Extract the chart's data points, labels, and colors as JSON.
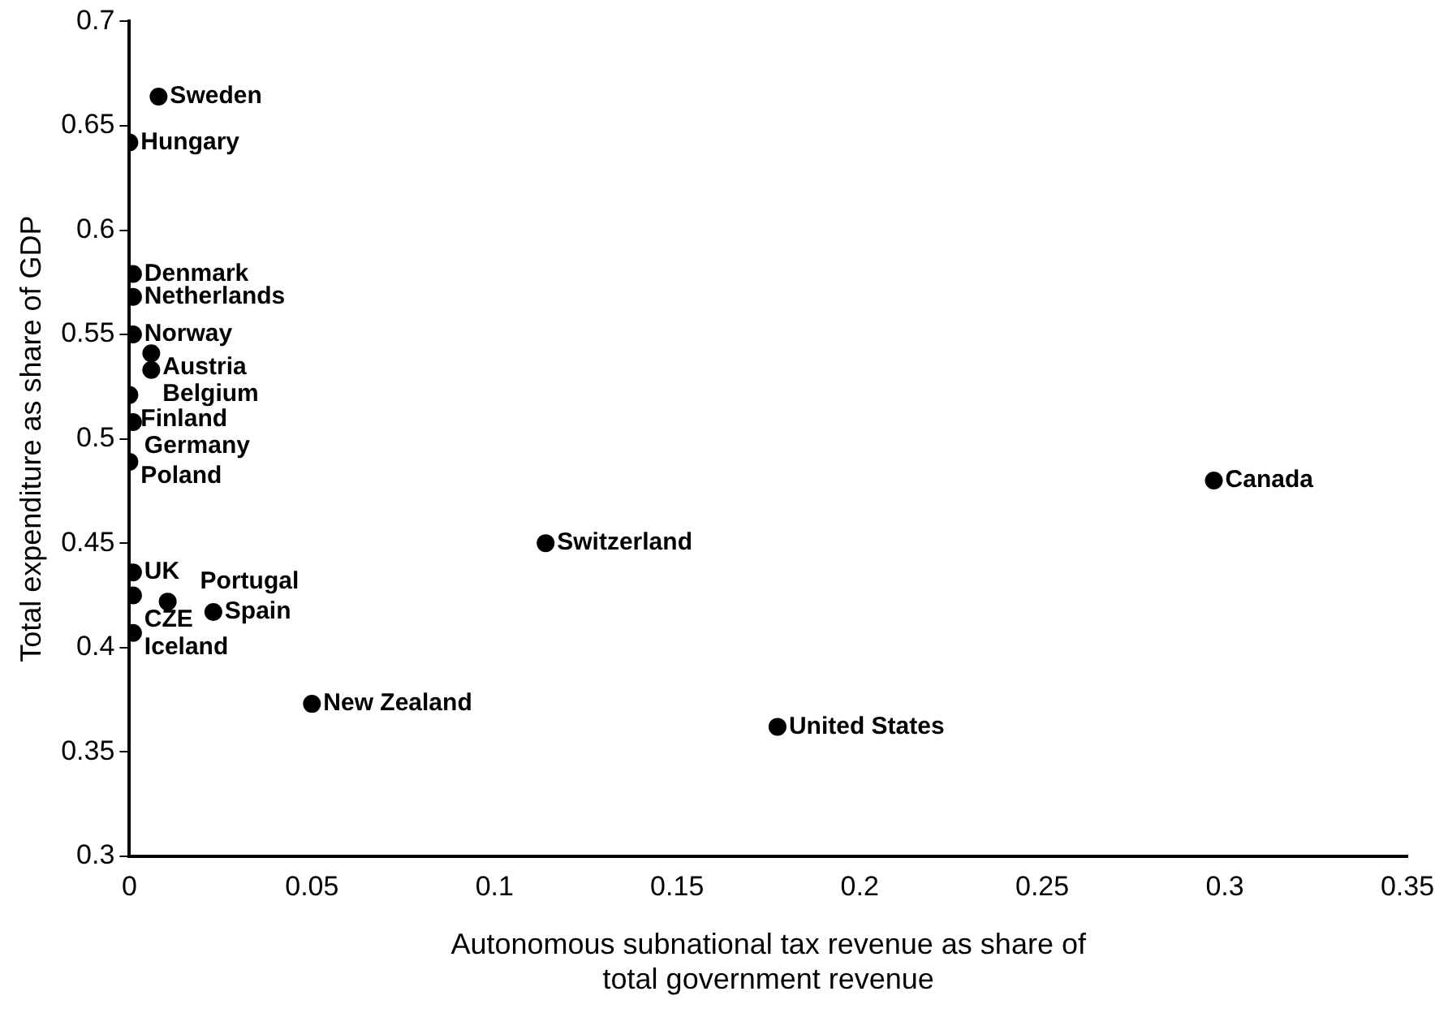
{
  "chart_data": {
    "type": "scatter",
    "xlabel": "Autonomous subnational tax revenue as share of\ntotal government revenue",
    "ylabel": "Total expenditure as share of GDP",
    "series": [
      {
        "color": "#000000",
        "x": [
          0.008,
          0,
          0.001,
          0.001,
          0.001,
          0.006,
          0.006,
          0,
          0.001,
          0,
          0.001,
          0.001,
          0.0105,
          0.023,
          0.001,
          0.05,
          0.114,
          0.1775,
          0.297
        ],
        "values": [
          0.664,
          0.642,
          0.579,
          0.568,
          0.55,
          0.541,
          0.533,
          0.521,
          0.508,
          0.489,
          0.436,
          0.425,
          0.422,
          0.417,
          0.407,
          0.373,
          0.45,
          0.362,
          0.48
        ]
      }
    ],
    "annotations": [
      {
        "text": "Sweden",
        "x": 0.008,
        "y": 0.664
      },
      {
        "text": "Hungary",
        "x": 0,
        "y": 0.642
      },
      {
        "text": "Denmark",
        "x": 0.001,
        "y": 0.579
      },
      {
        "text": "Netherlands",
        "x": 0.001,
        "y": 0.568
      },
      {
        "text": "Norway",
        "x": 0.001,
        "y": 0.55
      },
      {
        "text": "Austria",
        "x": 0.006,
        "y": 0.541
      },
      {
        "text": "Belgium",
        "x": 0.006,
        "y": 0.533
      },
      {
        "text": "Finland",
        "x": 0,
        "y": 0.521
      },
      {
        "text": "Germany",
        "x": 0.001,
        "y": 0.508
      },
      {
        "text": "Poland",
        "x": 0,
        "y": 0.489
      },
      {
        "text": "UK",
        "x": 0.001,
        "y": 0.436
      },
      {
        "text": "CZE",
        "x": 0.001,
        "y": 0.425
      },
      {
        "text": "Portugal",
        "x": 0.0105,
        "y": 0.422
      },
      {
        "text": "Spain",
        "x": 0.023,
        "y": 0.417
      },
      {
        "text": "Iceland",
        "x": 0.001,
        "y": 0.407
      },
      {
        "text": "New Zealand",
        "x": 0.05,
        "y": 0.373
      },
      {
        "text": "Switzerland",
        "x": 0.114,
        "y": 0.45
      },
      {
        "text": "United States",
        "x": 0.1775,
        "y": 0.362
      },
      {
        "text": "Canada",
        "x": 0.297,
        "y": 0.48
      }
    ],
    "xlim": [
      0,
      0.35
    ],
    "xticks": [
      0,
      0.05,
      0.1,
      0.15,
      0.2,
      0.25,
      0.3,
      0.35
    ],
    "ylim": [
      0.3,
      0.7
    ],
    "yticks": [
      0.3,
      0.35,
      0.4,
      0.45,
      0.5,
      0.55,
      0.6,
      0.65,
      0.7
    ],
    "grid": false,
    "legend": false,
    "marker": "circle"
  }
}
